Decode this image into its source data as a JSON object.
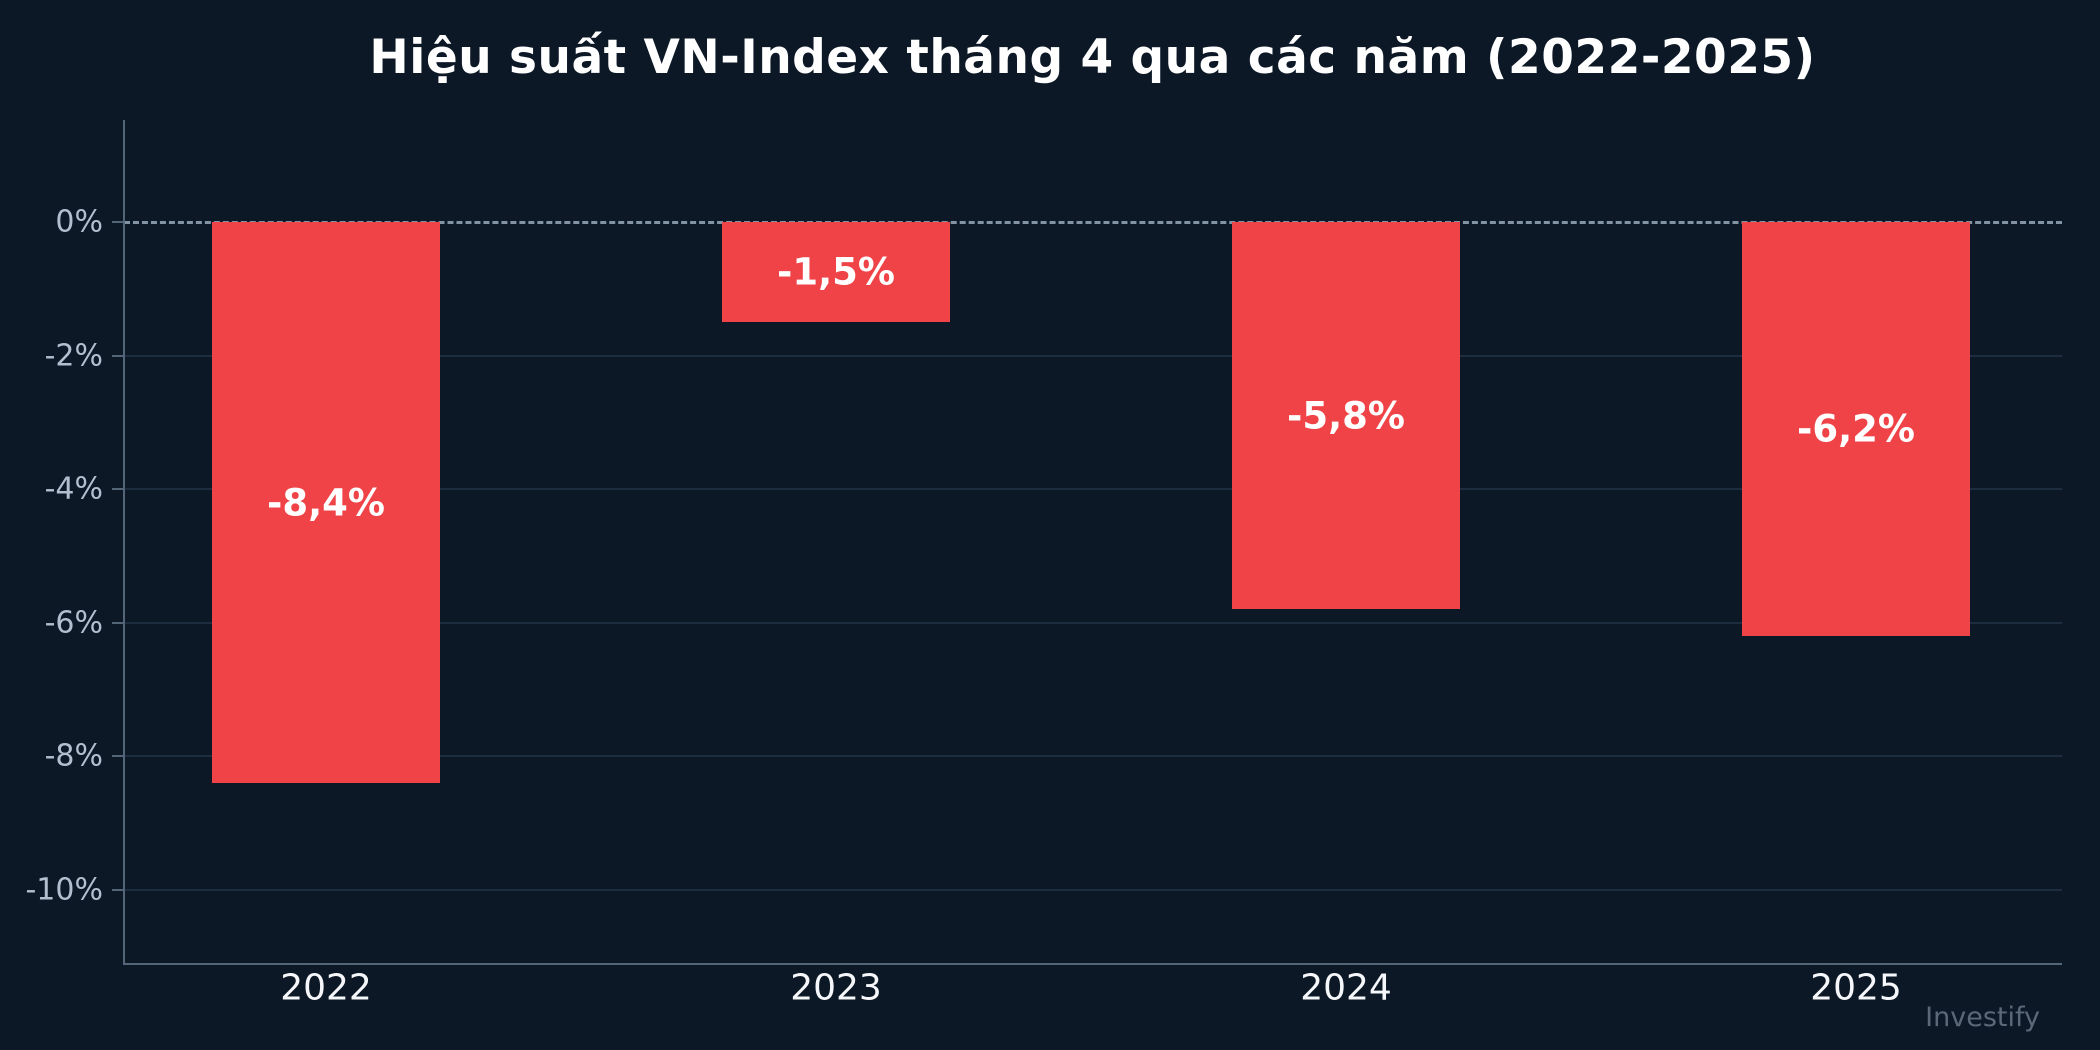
{
  "title": "Hiệu suất VN-Index tháng 4 qua các năm (2022-2025)",
  "watermark": "Investify",
  "colors": {
    "background": "#0c1826",
    "bar": "#f04347",
    "gridline": "#1e2c40",
    "axis": "#54657a",
    "zero_line": "#8493a3",
    "ytick_label": "#b3bfce",
    "title_text": "#ffffff",
    "bar_label": "#ffffff",
    "x_label": "#f5f7fa",
    "watermark_text": "#5a6878"
  },
  "chart_data": {
    "type": "bar",
    "title": "Hiệu suất VN-Index tháng 4 qua các năm (2022-2025)",
    "categories": [
      "2022",
      "2023",
      "2024",
      "2025"
    ],
    "values": [
      -8.4,
      -1.5,
      -5.8,
      -6.2
    ],
    "bar_labels": [
      "-8,4%",
      "-1,5%",
      "-5,8%",
      "-6,2%"
    ],
    "yticks": [
      {
        "value": 0,
        "label": "0%"
      },
      {
        "value": -2,
        "label": "-2%"
      },
      {
        "value": -4,
        "label": "-4%"
      },
      {
        "value": -6,
        "label": "-6%"
      },
      {
        "value": -8,
        "label": "-8%"
      },
      {
        "value": -10,
        "label": "-10%"
      }
    ],
    "ylim": [
      -11.1,
      1.5
    ],
    "xlabel": "",
    "ylabel": "",
    "grid": true,
    "zero_line_style": "dashed",
    "legend_position": "none"
  }
}
